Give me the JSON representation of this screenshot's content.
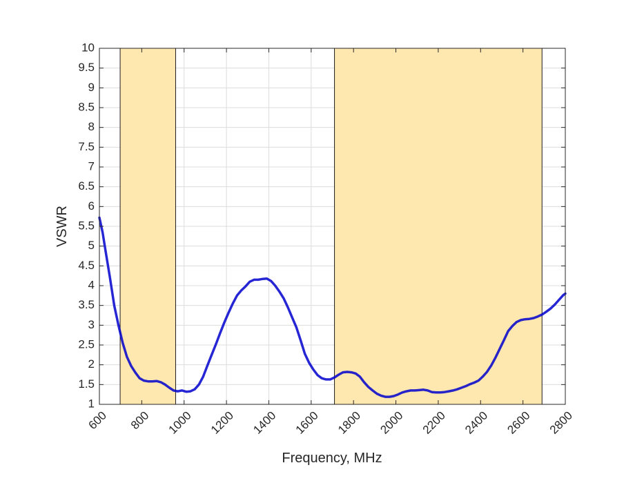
{
  "chart_data": {
    "type": "line",
    "title": "",
    "xlabel": "Frequency, MHz",
    "ylabel": "VSWR",
    "xlim": [
      600,
      2800
    ],
    "ylim": [
      1,
      10
    ],
    "grid": true,
    "x_ticks": [
      600,
      800,
      1000,
      1200,
      1400,
      1600,
      1800,
      2000,
      2200,
      2400,
      2600,
      2800
    ],
    "x_tick_labels": [
      "600",
      "800",
      "1000",
      "1200",
      "1400",
      "1600",
      "1800",
      "2000",
      "2200",
      "2400",
      "2600",
      "2800"
    ],
    "y_ticks": [
      1,
      1.5,
      2,
      2.5,
      3,
      3.5,
      4,
      4.5,
      5,
      5.5,
      6,
      6.5,
      7,
      7.5,
      8,
      8.5,
      9,
      9.5,
      10
    ],
    "y_tick_labels": [
      "1",
      "1.5",
      "2",
      "2.5",
      "3",
      "3.5",
      "4",
      "4.5",
      "5",
      "5.5",
      "6",
      "6.5",
      "7",
      "7.5",
      "8",
      "8.5",
      "9",
      "9.5",
      "10"
    ],
    "shaded_bands": [
      {
        "x_start": 698,
        "x_end": 960
      },
      {
        "x_start": 1710,
        "x_end": 2690
      }
    ],
    "band_color": "#ffe8b0",
    "series": [
      {
        "name": "VSWR",
        "color": "#0000cc",
        "x": [
          600,
          615,
          630,
          650,
          670,
          690,
          710,
          730,
          750,
          770,
          790,
          810,
          830,
          850,
          870,
          890,
          910,
          930,
          950,
          970,
          990,
          1010,
          1030,
          1050,
          1070,
          1090,
          1110,
          1130,
          1150,
          1170,
          1190,
          1210,
          1230,
          1250,
          1270,
          1290,
          1310,
          1330,
          1350,
          1370,
          1390,
          1410,
          1430,
          1450,
          1470,
          1490,
          1510,
          1530,
          1550,
          1570,
          1590,
          1610,
          1630,
          1650,
          1670,
          1690,
          1710,
          1730,
          1750,
          1770,
          1790,
          1810,
          1830,
          1850,
          1870,
          1890,
          1910,
          1930,
          1950,
          1970,
          1990,
          2010,
          2030,
          2050,
          2070,
          2090,
          2110,
          2130,
          2150,
          2170,
          2190,
          2210,
          2230,
          2250,
          2270,
          2290,
          2310,
          2330,
          2350,
          2370,
          2390,
          2410,
          2430,
          2450,
          2470,
          2490,
          2510,
          2530,
          2550,
          2570,
          2590,
          2610,
          2630,
          2650,
          2670,
          2690,
          2710,
          2730,
          2750,
          2770,
          2790,
          2800
        ],
        "y": [
          5.72,
          5.35,
          4.85,
          4.2,
          3.5,
          3.0,
          2.55,
          2.2,
          1.97,
          1.8,
          1.66,
          1.6,
          1.58,
          1.58,
          1.59,
          1.56,
          1.5,
          1.42,
          1.35,
          1.33,
          1.35,
          1.32,
          1.33,
          1.38,
          1.5,
          1.7,
          1.98,
          2.25,
          2.52,
          2.8,
          3.07,
          3.32,
          3.55,
          3.75,
          3.88,
          3.98,
          4.1,
          4.15,
          4.15,
          4.17,
          4.18,
          4.12,
          4.0,
          3.85,
          3.68,
          3.45,
          3.2,
          2.95,
          2.62,
          2.28,
          2.05,
          1.88,
          1.74,
          1.66,
          1.63,
          1.63,
          1.68,
          1.75,
          1.81,
          1.82,
          1.81,
          1.78,
          1.7,
          1.56,
          1.44,
          1.35,
          1.27,
          1.22,
          1.19,
          1.19,
          1.21,
          1.25,
          1.3,
          1.33,
          1.35,
          1.35,
          1.36,
          1.37,
          1.35,
          1.31,
          1.3,
          1.3,
          1.31,
          1.33,
          1.35,
          1.38,
          1.42,
          1.46,
          1.51,
          1.55,
          1.6,
          1.7,
          1.82,
          1.98,
          2.18,
          2.4,
          2.62,
          2.85,
          2.98,
          3.08,
          3.13,
          3.15,
          3.16,
          3.18,
          3.22,
          3.27,
          3.34,
          3.42,
          3.52,
          3.64,
          3.76,
          3.8
        ]
      }
    ]
  }
}
